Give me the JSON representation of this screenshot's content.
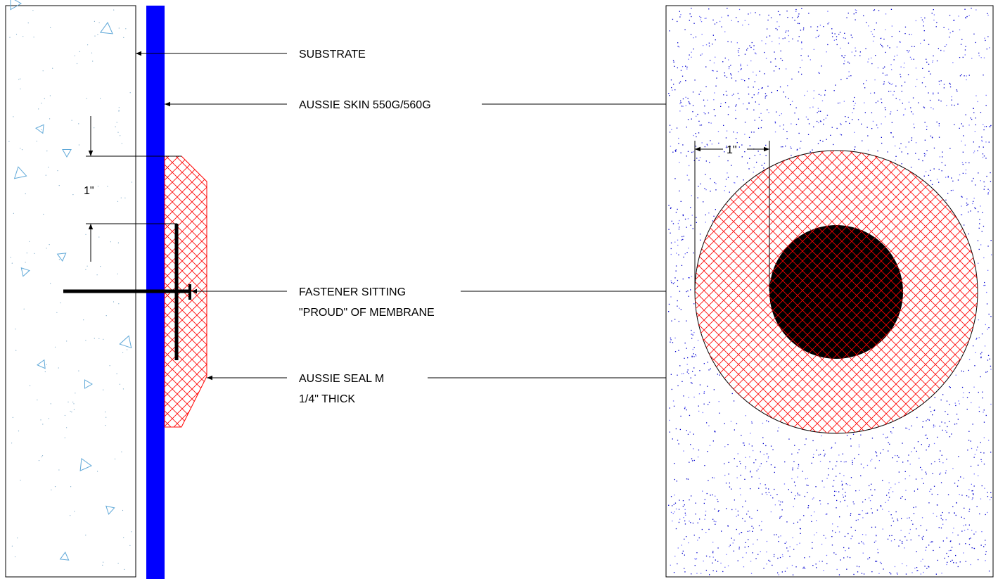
{
  "labels": {
    "substrate": "SUBSTRATE",
    "skin": "AUSSIE SKIN 550G/560G",
    "fastener_line1": "FASTENER SITTING",
    "fastener_line2": "\"PROUD\" OF MEMBRANE",
    "seal_line1": "AUSSIE SEAL M",
    "seal_line2": "1/4\" THICK"
  },
  "dimensions": {
    "section_view": "1\"",
    "plan_view": "1\""
  },
  "colors": {
    "membrane": "#0000ff",
    "seal_hatch": "#ff0000",
    "fastener": "#000000",
    "speckle": "#0000cc",
    "aggregate": "#5fa8d8"
  }
}
